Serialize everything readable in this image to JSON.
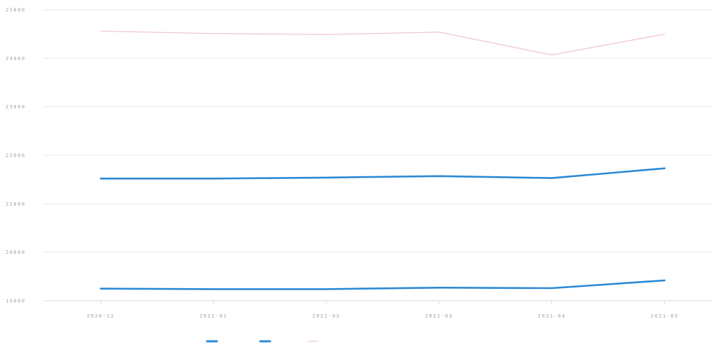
{
  "chart_data": {
    "type": "line",
    "categories": [
      "2020-12",
      "2021-01",
      "2021-02",
      "2021-03",
      "2021-04",
      "2021-05"
    ],
    "ylim": [
      19000,
      25000
    ],
    "y_ticks": [
      19000,
      20000,
      21000,
      22000,
      23000,
      24000,
      25000
    ],
    "grid": true,
    "legend_position": "bottom-center",
    "series": [
      {
        "name": "",
        "color": "#2b89d6",
        "values": [
          19250,
          19240,
          19240,
          19270,
          19260,
          19420
        ]
      },
      {
        "name": "",
        "color": "#2b89d6",
        "values": [
          21520,
          21520,
          21540,
          21570,
          21530,
          21730
        ]
      },
      {
        "name": "",
        "color": "#f0c6cc",
        "values": [
          24560,
          24510,
          24490,
          24540,
          24070,
          24500
        ]
      }
    ]
  }
}
